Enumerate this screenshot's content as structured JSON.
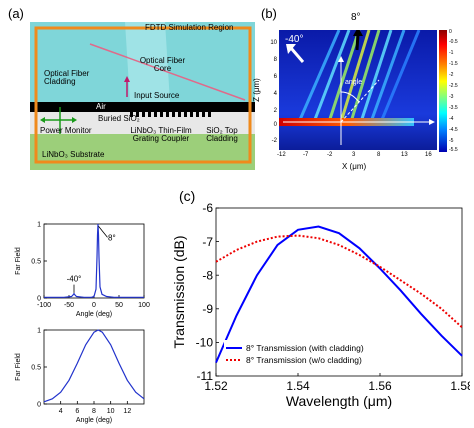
{
  "panel_a": {
    "letter": "(a)",
    "fdtd_region": "FDTD Simulation Region",
    "fiber_cladding": "Optical Fiber Cladding",
    "fiber_core": "Optical Fiber Core",
    "input_source": "Input Source",
    "air": "Air",
    "buried_sio2": "Buried SiO₂",
    "power_monitor": "Power Monitor",
    "grating_coupler": "LiNbO₃ Thin-Film Grating Coupler",
    "top_cladding": "SiO₂ Top Cladding",
    "substrate": "LiNbO₃ Substrate"
  },
  "panel_b": {
    "letter": "(b)",
    "angle_8": "8°",
    "angle_neg40": "-40°",
    "angle_label": "angle",
    "xlabel": "X (μm)",
    "ylabel": "Z (μm)",
    "xticks": [
      "-12",
      "-7",
      "-2",
      "3",
      "8",
      "13",
      "16"
    ],
    "yticks": [
      "10",
      "8",
      "6",
      "4",
      "2",
      "0",
      "-2"
    ],
    "colorbar_ticks": [
      "0",
      "-0.5",
      "-1",
      "-1.5",
      "-2",
      "-2.5",
      "-3",
      "-3.5",
      "-4",
      "-4.5",
      "-5",
      "-5.5"
    ]
  },
  "panel_c": {
    "letter": "(c)"
  },
  "chart_data": [
    {
      "type": "line",
      "ylabel": "Far Field",
      "xlabel": "Angle (deg)",
      "xlim": [
        -100,
        100
      ],
      "ylim": [
        0,
        1
      ],
      "xticks": [
        "-100",
        "-50",
        "0",
        "50",
        "100"
      ],
      "yticks": [
        "0",
        "0.5",
        "1"
      ],
      "annotations": [
        "8°",
        "-40°"
      ],
      "series": [
        {
          "x": [
            -100,
            -60,
            -45,
            -42,
            -40,
            -38,
            -35,
            -20,
            -5,
            0,
            4,
            6,
            7,
            8,
            9,
            10,
            12,
            16,
            25,
            40,
            60,
            100
          ],
          "y": [
            0.01,
            0.01,
            0.02,
            0.04,
            0.06,
            0.04,
            0.02,
            0.01,
            0.01,
            0.02,
            0.12,
            0.55,
            0.85,
            1.0,
            0.85,
            0.55,
            0.15,
            0.05,
            0.02,
            0.01,
            0.01,
            0.01
          ]
        }
      ]
    },
    {
      "type": "line",
      "ylabel": "Far Field",
      "xlabel": "Angle (deg)",
      "xlim": [
        2,
        14
      ],
      "ylim": [
        0,
        1
      ],
      "xticks": [
        "4",
        "6",
        "8",
        "10",
        "12"
      ],
      "yticks": [
        "0",
        "0.5",
        "1"
      ],
      "series": [
        {
          "x": [
            2,
            3,
            4,
            5,
            6,
            7,
            8,
            8.5,
            9,
            10,
            11,
            12,
            13,
            14
          ],
          "y": [
            0.03,
            0.07,
            0.16,
            0.32,
            0.55,
            0.8,
            0.97,
            1.0,
            0.97,
            0.8,
            0.55,
            0.32,
            0.16,
            0.07
          ]
        }
      ]
    },
    {
      "type": "line",
      "xlabel": "Wavelength (μm)",
      "ylabel": "Transmission (dB)",
      "xlim": [
        1.52,
        1.58
      ],
      "ylim": [
        -11,
        -6
      ],
      "xticks": [
        "1.52",
        "1.54",
        "1.56",
        "1.58"
      ],
      "yticks": [
        "-6",
        "-7",
        "-8",
        "-9",
        "-10",
        "-11"
      ],
      "legend_placement": "bottom",
      "series": [
        {
          "name": "8° Transmission (with cladding)",
          "color": "#0000ff",
          "style": "solid",
          "x": [
            1.52,
            1.525,
            1.53,
            1.535,
            1.54,
            1.545,
            1.55,
            1.555,
            1.56,
            1.565,
            1.57,
            1.575,
            1.58
          ],
          "y": [
            -10.6,
            -9.2,
            -8.0,
            -7.1,
            -6.65,
            -6.55,
            -6.75,
            -7.2,
            -7.8,
            -8.45,
            -9.15,
            -9.8,
            -10.4
          ]
        },
        {
          "name": "8° Transmission (w/o cladding)",
          "color": "#ee0000",
          "style": "dotted",
          "x": [
            1.52,
            1.525,
            1.53,
            1.535,
            1.54,
            1.545,
            1.55,
            1.555,
            1.56,
            1.565,
            1.57,
            1.575,
            1.58
          ],
          "y": [
            -7.6,
            -7.25,
            -7.0,
            -6.85,
            -6.82,
            -6.9,
            -7.1,
            -7.4,
            -7.75,
            -8.15,
            -8.55,
            -9.0,
            -9.55
          ]
        }
      ]
    }
  ]
}
